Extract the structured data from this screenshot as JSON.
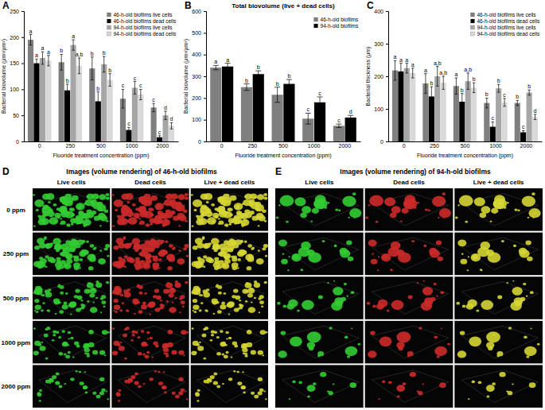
{
  "chart_data": [
    {
      "type": "bar",
      "panel_label": "A",
      "x_label": "Fluoride treatment concentration (ppm)",
      "y_label": "Bacterial biovolume (µm³/µm²)",
      "categories": [
        0,
        250,
        500,
        1000,
        2000
      ],
      "ylim": [
        0,
        250
      ],
      "yticks": [
        0,
        50,
        100,
        150,
        200,
        250
      ],
      "grid": false,
      "legend": "top-right",
      "series": [
        {
          "name": "46-h-old biofilms live cells",
          "color": "#7f7f7f",
          "values": [
            195,
            152,
            140,
            82,
            65
          ],
          "errors": [
            10,
            15,
            22,
            18,
            8
          ],
          "letters": [
            "a",
            "b",
            "b",
            "c",
            "c"
          ]
        },
        {
          "name": "46-h-old biofilms dead cells",
          "color": "#000000",
          "values": [
            150,
            98,
            77,
            22,
            8
          ],
          "errors": [
            8,
            12,
            18,
            5,
            3
          ],
          "letters": [
            "a",
            "b",
            "b",
            "c",
            "c"
          ]
        },
        {
          "name": "94-h-old biofilms live cells",
          "color": "#a6a6a6",
          "values": [
            160,
            185,
            148,
            103,
            50
          ],
          "errors": [
            12,
            10,
            15,
            12,
            8
          ],
          "letters": [
            "a",
            "a",
            "b",
            "c",
            "d"
          ]
        },
        {
          "name": "94-h-old biofilms dead cells",
          "color": "#d9d9d9",
          "values": [
            155,
            145,
            118,
            90,
            30
          ],
          "errors": [
            10,
            15,
            12,
            10,
            6
          ],
          "letters": [
            "a",
            "a,b",
            "b",
            "c",
            "d"
          ]
        }
      ]
    },
    {
      "type": "bar",
      "panel_label": "B",
      "title": "Total biovolume (live + dead cells)",
      "x_label": "Fluoride treatment concentration (ppm)",
      "y_label": "Bacterial biovolume (µm³/µm²)",
      "categories": [
        0,
        250,
        500,
        1000,
        2000
      ],
      "ylim": [
        0,
        600
      ],
      "yticks": [
        0,
        100,
        200,
        300,
        400,
        500,
        600
      ],
      "grid": false,
      "legend": "top-right",
      "series": [
        {
          "name": "46-h-old biofilms",
          "color": "#7f7f7f",
          "values": [
            340,
            250,
            215,
            105,
            72
          ],
          "errors": [
            10,
            15,
            35,
            25,
            8
          ],
          "letters": [
            "a",
            "b",
            "b",
            "c",
            "c"
          ]
        },
        {
          "name": "94-h-old biofilms",
          "color": "#000000",
          "values": [
            345,
            310,
            265,
            180,
            110
          ],
          "errors": [
            15,
            15,
            20,
            25,
            10
          ],
          "letters": [
            "a",
            "b",
            "b",
            "c",
            "d"
          ]
        }
      ]
    },
    {
      "type": "bar",
      "panel_label": "C",
      "x_label": "Fluoride treatment concentration (ppm)",
      "y_label": "Bacterial thickness (µm)",
      "categories": [
        0,
        250,
        500,
        1000,
        2000
      ],
      "ylim": [
        0,
        400
      ],
      "yticks": [
        0,
        100,
        200,
        300,
        400
      ],
      "grid": false,
      "legend": "top-right",
      "series": [
        {
          "name": "46-h-old biofilms live cells",
          "color": "#7f7f7f",
          "values": [
            218,
            178,
            170,
            118,
            118
          ],
          "errors": [
            30,
            30,
            25,
            15,
            8
          ],
          "letters": [
            "a",
            "a",
            "a",
            "b",
            "b"
          ]
        },
        {
          "name": "46-h-old biofilms dead cells",
          "color": "#000000",
          "values": [
            215,
            138,
            122,
            45,
            28
          ],
          "errors": [
            25,
            30,
            25,
            15,
            5
          ],
          "letters": [
            "a",
            "b",
            "b",
            "c",
            "c"
          ]
        },
        {
          "name": "94-h-old biofilms live cells",
          "color": "#a6a6a6",
          "values": [
            225,
            200,
            185,
            163,
            150
          ],
          "errors": [
            15,
            30,
            25,
            12,
            8
          ],
          "letters": [
            "a",
            "a,b",
            "a,b",
            "b",
            "b"
          ]
        },
        {
          "name": "94-h-old biofilms dead cells",
          "color": "#d9d9d9",
          "values": [
            210,
            180,
            165,
            120,
            75
          ],
          "errors": [
            15,
            20,
            15,
            12,
            8
          ],
          "letters": [
            "a",
            "a,b",
            "b",
            "c",
            "d"
          ]
        }
      ]
    }
  ],
  "image_panels": [
    {
      "panel_label": "D",
      "title": "Images (volume rendering) of 46-h-old biofilms",
      "columns": [
        "Live cells",
        "Dead cells",
        "Live + dead cells"
      ],
      "rows": [
        "0 ppm",
        "250 ppm",
        "500 ppm",
        "1000 ppm",
        "2000 ppm"
      ]
    },
    {
      "panel_label": "E",
      "title": "Images (volume rendering) of 94-h-old biofilms",
      "columns": [
        "Live cells",
        "Dead cells",
        "Live + dead cells"
      ]
    }
  ]
}
